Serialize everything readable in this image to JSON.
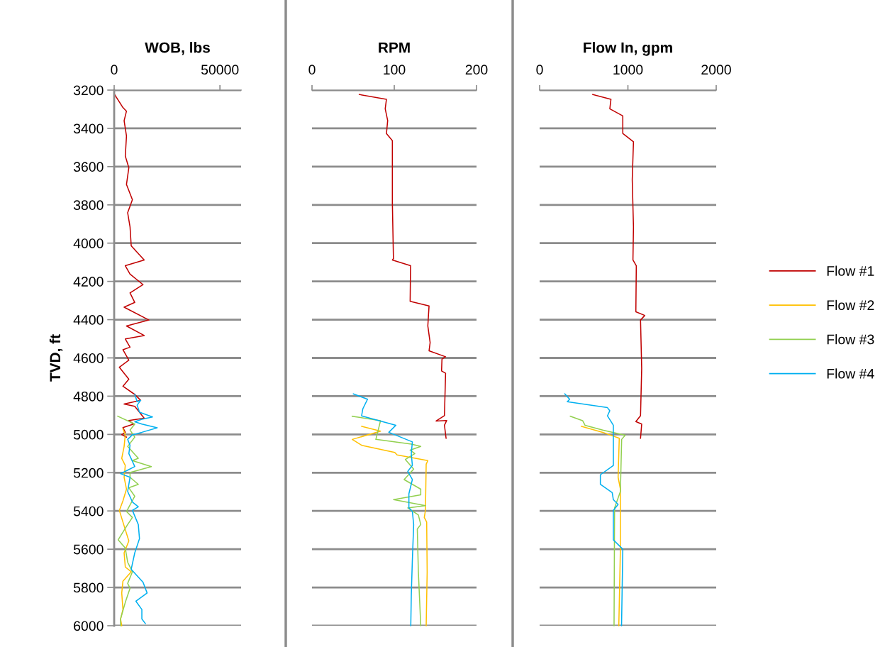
{
  "chart_data": [
    {
      "type": "line",
      "title": "WOB, lbs",
      "ylabel": "TVD, ft",
      "xlim": [
        0,
        60000
      ],
      "xticks": [
        0,
        50000
      ],
      "ylim": [
        6000,
        3200
      ],
      "yticks": [
        3200,
        3400,
        3600,
        3800,
        4000,
        4200,
        4400,
        4600,
        4800,
        5000,
        5200,
        5400,
        5600,
        5800,
        6000
      ],
      "grid": "y",
      "marker": "none",
      "line_style": "solid",
      "series": [
        {
          "color": "#c00000",
          "x": [
            200,
            4140,
            5820,
            4700,
            5820,
            5260,
            6940,
            5820,
            8620,
            6380,
            7500,
            8060,
            14200,
            5260,
            7500,
            13650,
            7500,
            9740,
            4700,
            16450,
            5820,
            14200,
            5260,
            7500,
            4140,
            6940,
            2460,
            6940,
            4140,
            9740,
            12530,
            4700,
            9740,
            14200,
            6940,
            9170,
            4140,
            5260,
            3580,
            5820
          ],
          "values": [
            3223,
            3291,
            3310,
            3360,
            3440,
            3545,
            3606,
            3693,
            3773,
            3841,
            3915,
            4014,
            4088,
            4118,
            4162,
            4217,
            4260,
            4310,
            4335,
            4402,
            4433,
            4483,
            4501,
            4544,
            4557,
            4612,
            4649,
            4711,
            4748,
            4791,
            4822,
            4841,
            4853,
            4915,
            4927,
            4946,
            4964,
            4989,
            5001,
            5014
          ]
        },
        {
          "color": "#ffc000",
          "x": [
            4140,
            5260,
            4700,
            3580,
            5260,
            4700,
            5820,
            4140,
            2460,
            4140,
            6940,
            4700,
            5260,
            8060,
            4140,
            3580,
            4140,
            3020,
            3580
          ],
          "values": [
            4971,
            5002,
            5063,
            5125,
            5162,
            5224,
            5286,
            5347,
            5397,
            5458,
            5557,
            5619,
            5693,
            5718,
            5767,
            5829,
            5915,
            5965,
            6000
          ]
        },
        {
          "color": "#92d050",
          "x": [
            1680,
            9740,
            7500,
            9740,
            6380,
            11410,
            8620,
            17570,
            7500,
            7500,
            11410,
            6940,
            9740,
            5820,
            8620,
            6380,
            1900,
            5260,
            6380,
            8620,
            6380,
            7500,
            5260,
            3020,
            3020
          ],
          "values": [
            4905,
            4946,
            4977,
            5014,
            5063,
            5125,
            5137,
            5168,
            5199,
            5224,
            5261,
            5279,
            5323,
            5403,
            5434,
            5471,
            5551,
            5594,
            5668,
            5718,
            5779,
            5804,
            5878,
            5965,
            6000
          ]
        },
        {
          "color": "#00b0f0",
          "x": [
            9740,
            10850,
            12530,
            10850,
            11970,
            18130,
            13090,
            9740,
            13090,
            20370,
            13090,
            8620,
            6380,
            7500,
            6940,
            9740,
            6380,
            3020,
            7500,
            6380,
            8620,
            11410,
            8620,
            11410,
            11970,
            9740,
            8060,
            13650,
            15570,
            10290,
            13090,
            13090,
            14770
          ],
          "values": [
            4790,
            4829,
            4822,
            4847,
            4884,
            4909,
            4921,
            4934,
            4946,
            4965,
            4989,
            5002,
            5026,
            5057,
            5100,
            5168,
            5187,
            5205,
            5224,
            5298,
            5353,
            5378,
            5397,
            5471,
            5545,
            5619,
            5705,
            5773,
            5829,
            5872,
            5915,
            5965,
            5989
          ]
        }
      ]
    },
    {
      "type": "line",
      "title": "RPM",
      "xlim": [
        0,
        200
      ],
      "xticks": [
        0,
        100,
        200
      ],
      "ylim": [
        6000,
        3200
      ],
      "yticks": [
        3200,
        3400,
        3600,
        3800,
        4000,
        4200,
        4400,
        4600,
        4800,
        5000,
        5200,
        5400,
        5600,
        5800,
        6000
      ],
      "grid": "y",
      "tick_labels": "x",
      "marker": "none",
      "line_style": "solid",
      "series": [
        {
          "color": "#c00000",
          "x": [
            57.5,
            90.5,
            89,
            92,
            90.5,
            97.7,
            97.7,
            99,
            97.7,
            119.8,
            119.3,
            142.3,
            140.8,
            143.6,
            142.3,
            162.4,
            158,
            157.5,
            162.4,
            161,
            150.9,
            163.8,
            161,
            163
          ],
          "values": [
            3223,
            3248,
            3298,
            3359,
            3427,
            3464,
            3791,
            4081,
            4088,
            4118,
            4304,
            4328,
            4433,
            4520,
            4563,
            4594,
            4606,
            4668,
            4680,
            4902,
            4930,
            4927,
            4952,
            5020
          ]
        },
        {
          "color": "#ffc000",
          "x": [
            60.4,
            83.3,
            48.9,
            60.4,
            100.6,
            103.5,
            140.8,
            138.8,
            137.9,
            136.5,
            139.4,
            140,
            138.8
          ],
          "values": [
            4958,
            4983,
            5026,
            5057,
            5094,
            5107,
            5137,
            5156,
            5397,
            5434,
            5458,
            5718,
            6000
          ]
        },
        {
          "color": "#92d050",
          "x": [
            48.9,
            83.3,
            80.5,
            77.6,
            120.7,
            132.2,
            119.3,
            125,
            113.5,
            123.6,
            112,
            132.2,
            132.2,
            99.2,
            138,
            116.4,
            129.3,
            132.2,
            128,
            129.3,
            132.2
          ],
          "values": [
            4905,
            4928,
            4977,
            5026,
            5051,
            5063,
            5082,
            5100,
            5131,
            5181,
            5236,
            5286,
            5316,
            5341,
            5372,
            5384,
            5421,
            5471,
            5495,
            5718,
            6000
          ]
        },
        {
          "color": "#00b0f0",
          "x": [
            50.3,
            67.5,
            61.8,
            60.3,
            102,
            93.4,
            122,
            120.7,
            122,
            116.4,
            122,
            117.8,
            117.8,
            122,
            123.6,
            122,
            120.7,
            120.1
          ],
          "values": [
            4788,
            4816,
            4866,
            4903,
            4952,
            4989,
            5039,
            5100,
            5162,
            5193,
            5236,
            5310,
            5384,
            5403,
            5471,
            5656,
            5841,
            6000
          ]
        }
      ]
    },
    {
      "type": "line",
      "title": "Flow In, gpm",
      "xlim": [
        0,
        2000
      ],
      "xticks": [
        0,
        1000,
        2000
      ],
      "ylim": [
        6000,
        3200
      ],
      "yticks": [
        3200,
        3400,
        3600,
        3800,
        4000,
        4200,
        4400,
        4600,
        4800,
        5000,
        5200,
        5400,
        5600,
        5800,
        6000
      ],
      "grid": "y",
      "tick_labels": "x",
      "legend": "right",
      "marker": "none",
      "line_style": "solid",
      "series": [
        {
          "name": "Flow #1",
          "color": "#c00000",
          "x": [
            602,
            808,
            795,
            942,
            942,
            1063,
            1049,
            1063,
            1057,
            1095,
            1090,
            1191,
            1143,
            1156,
            1143,
            1090,
            1156,
            1143
          ],
          "values": [
            3223,
            3248,
            3298,
            3335,
            3427,
            3470,
            3668,
            3915,
            4088,
            4118,
            4359,
            4378,
            4402,
            4656,
            4902,
            4933,
            4946,
            5020
          ]
        },
        {
          "name": "Flow #2",
          "color": "#ffc000",
          "x": [
            474,
            715,
            902,
            889,
            915,
            915,
            897
          ],
          "values": [
            4958,
            4989,
            5020,
            5224,
            5286,
            5594,
            6000
          ]
        },
        {
          "name": "Flow #3",
          "color": "#92d050",
          "x": [
            348,
            487,
            514,
            715,
            969,
            929,
            915,
            849,
            843
          ],
          "values": [
            4905,
            4928,
            4952,
            4977,
            5004,
            5026,
            5298,
            5384,
            6000
          ]
        },
        {
          "name": "Flow #4",
          "color": "#00b0f0",
          "x": [
            286,
            340,
            313,
            768,
            795,
            768,
            835,
            835,
            688,
            688,
            822,
            835,
            889,
            835,
            835,
            942,
            928
          ],
          "values": [
            4788,
            4816,
            4829,
            4860,
            4876,
            4903,
            4952,
            5162,
            5211,
            5261,
            5304,
            5341,
            5366,
            5397,
            5551,
            5600,
            6000
          ]
        }
      ]
    }
  ]
}
